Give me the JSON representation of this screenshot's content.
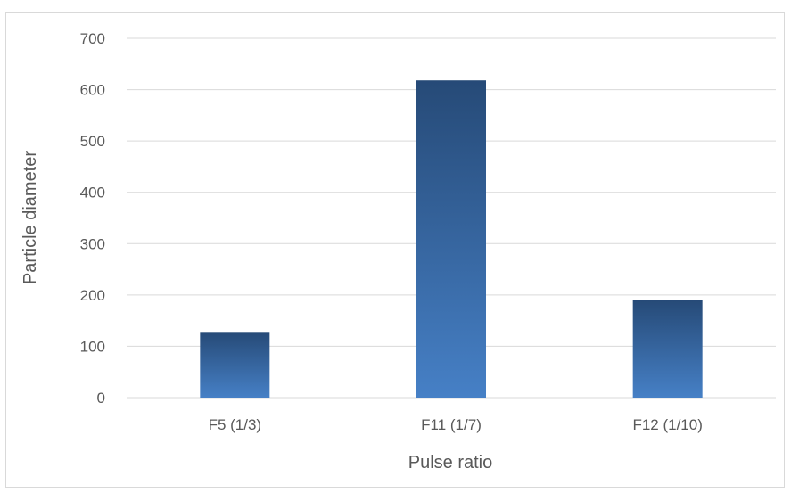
{
  "chart_data": {
    "type": "bar",
    "title": "",
    "xlabel": "Pulse ratio",
    "ylabel": "Particle diameter",
    "categories": [
      "F5 (1/3)",
      "F11 (1/7)",
      "F12 (1/10)"
    ],
    "values": [
      128,
      618,
      190
    ],
    "ylim": [
      0,
      700
    ],
    "yticks": [
      0,
      100,
      200,
      300,
      400,
      500,
      600,
      700
    ],
    "ytick_labels": [
      "0",
      "100",
      "200",
      "300",
      "400",
      "500",
      "600",
      "700"
    ],
    "grid": true,
    "legend": "none",
    "colors": {
      "bar_top": "#264a77",
      "bar_bottom": "#4680c6",
      "gridline": "#d9d9d9",
      "text": "#595959"
    }
  }
}
